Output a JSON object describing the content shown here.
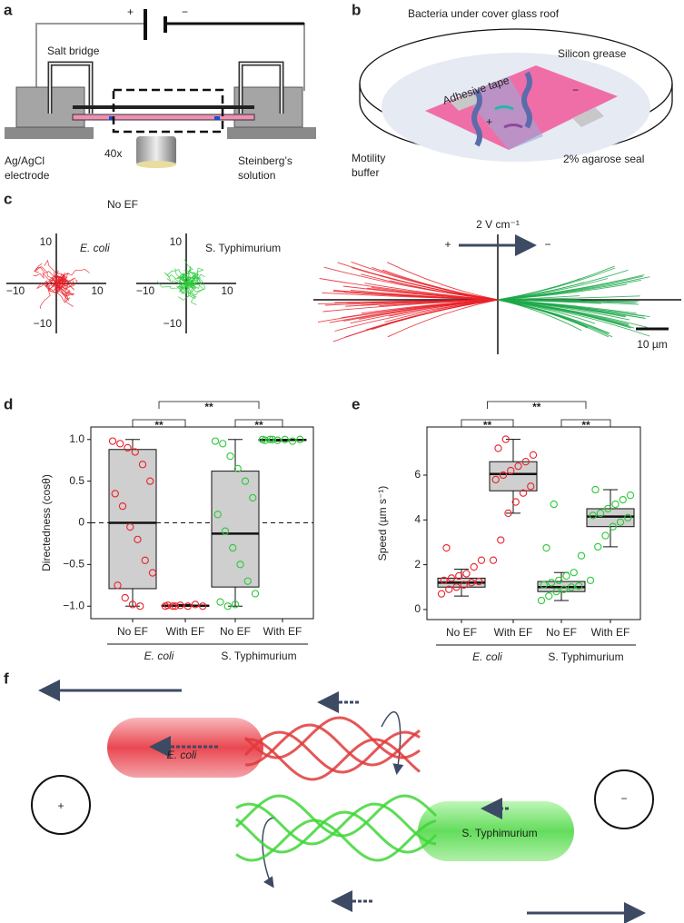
{
  "figure": {
    "a": {
      "label": "a",
      "plus": "+",
      "minus": "−",
      "salt_bridge": "Salt bridge",
      "electrode": [
        "Ag/AgCl",
        "electrode"
      ],
      "objective": "40x",
      "solution": [
        "Steinberg’s",
        "solution"
      ]
    },
    "b": {
      "label": "b",
      "roof": "Bacteria under cover glass roof",
      "grease": "Silicon grease",
      "tape": "Adhesive tape",
      "buffer": [
        "Motility",
        "buffer"
      ],
      "seal": "2% agarose seal",
      "plus": "+",
      "minus": "−"
    },
    "c": {
      "label": "c",
      "no_ef": "No EF",
      "ecoli": "E. coli",
      "typh": "S. Typhimurium",
      "ticks": [
        {
          "value": -10,
          "label": "−10"
        },
        10
      ],
      "field": "2 V cm⁻¹",
      "plus": "+",
      "minus": "−",
      "scale": "10 µm"
    },
    "f": {
      "label": "f",
      "ecoli": "E. coli",
      "typh": "S. Typhimurium",
      "plus": "+",
      "minus": "−"
    }
  },
  "chart_data": [
    {
      "type": "box",
      "label": "d",
      "ylabel": "Directedness (cosθ)",
      "categories": [
        "No EF",
        "With EF",
        "No EF",
        "With EF"
      ],
      "groups": [
        "E. coli",
        "S. Typhimurium"
      ],
      "colors": [
        "#e8222a",
        "#e8222a",
        "#2bc93a",
        "#2bc93a"
      ],
      "group_colors": [
        "#e8222a",
        "#2bc93a"
      ],
      "boxes": [
        {
          "low": -1.0,
          "q1": -0.79,
          "median": 0.0,
          "q3": 0.88,
          "high": 1.0
        },
        {
          "low": -1.0,
          "q1": -1.0,
          "median": -0.995,
          "q3": -0.99,
          "high": -0.98
        },
        {
          "low": -1.0,
          "q1": -0.77,
          "median": -0.13,
          "q3": 0.62,
          "high": 1.0
        },
        {
          "low": 0.98,
          "q1": 0.99,
          "median": 0.995,
          "q3": 1.0,
          "high": 1.0
        }
      ],
      "points": [
        [
          0.98,
          0.95,
          0.9,
          0.85,
          0.7,
          0.5,
          0.35,
          0.2,
          -0.05,
          -0.2,
          -0.45,
          -0.6,
          -0.75,
          -0.9,
          -0.98,
          -1.0
        ],
        [
          -1.0,
          -1.0,
          -0.99,
          -1.0,
          -0.98,
          -1.0,
          -0.99,
          -1.0
        ],
        [
          0.98,
          0.95,
          0.8,
          0.65,
          0.5,
          0.3,
          0.1,
          -0.1,
          -0.3,
          -0.5,
          -0.7,
          -0.85,
          -0.95,
          -1.0,
          -0.98
        ],
        [
          1.0,
          1.0,
          0.99,
          1.0,
          0.98,
          1.0,
          0.99,
          1.0
        ]
      ],
      "ylim": [
        -1.15,
        1.15
      ],
      "yticks": [
        {
          "value": -1,
          "label": "−1.0"
        },
        {
          "value": -0.5,
          "label": "−0.5"
        },
        0,
        {
          "value": 0.5,
          "label": "0.5"
        },
        {
          "value": 1,
          "label": "1.0"
        }
      ],
      "zero_line": true,
      "significance": [
        "**",
        "**",
        "**"
      ]
    },
    {
      "type": "box",
      "label": "e",
      "ylabel": "Speed (µm s⁻¹)",
      "categories": [
        "No EF",
        "With EF",
        "No EF",
        "With EF"
      ],
      "groups": [
        "E. coli",
        "S. Typhimurium"
      ],
      "colors": [
        "#e8222a",
        "#e8222a",
        "#2bc93a",
        "#2bc93a"
      ],
      "group_colors": [
        "#e8222a",
        "#2bc93a"
      ],
      "boxes": [
        {
          "low": 0.6,
          "q1": 1.0,
          "median": 1.2,
          "q3": 1.4,
          "high": 1.8
        },
        {
          "low": 4.3,
          "q1": 5.3,
          "median": 6.05,
          "q3": 6.6,
          "high": 7.6
        },
        {
          "low": 0.4,
          "q1": 0.8,
          "median": 1.0,
          "q3": 1.25,
          "high": 1.65
        },
        {
          "low": 2.8,
          "q1": 3.7,
          "median": 4.15,
          "q3": 4.5,
          "high": 5.35
        }
      ],
      "points": [
        [
          0.7,
          0.9,
          1.0,
          1.1,
          1.2,
          1.25,
          1.3,
          1.4,
          1.5,
          1.6,
          1.9,
          2.2,
          2.75
        ],
        [
          2.2,
          3.1,
          4.3,
          4.8,
          5.2,
          5.5,
          5.8,
          6.0,
          6.2,
          6.4,
          6.6,
          6.9,
          7.2,
          7.6
        ],
        [
          0.4,
          0.6,
          0.8,
          0.9,
          1.0,
          1.05,
          1.1,
          1.2,
          1.3,
          1.5,
          1.65,
          2.4,
          2.75,
          4.7
        ],
        [
          1.3,
          2.8,
          3.3,
          3.7,
          3.9,
          4.1,
          4.2,
          4.3,
          4.5,
          4.7,
          4.9,
          5.1,
          5.35
        ]
      ],
      "ylim": [
        -0.45,
        8.15
      ],
      "yticks": [
        0,
        2,
        4,
        6
      ],
      "zero_line": false,
      "significance": [
        "**",
        "**",
        "**"
      ]
    }
  ]
}
